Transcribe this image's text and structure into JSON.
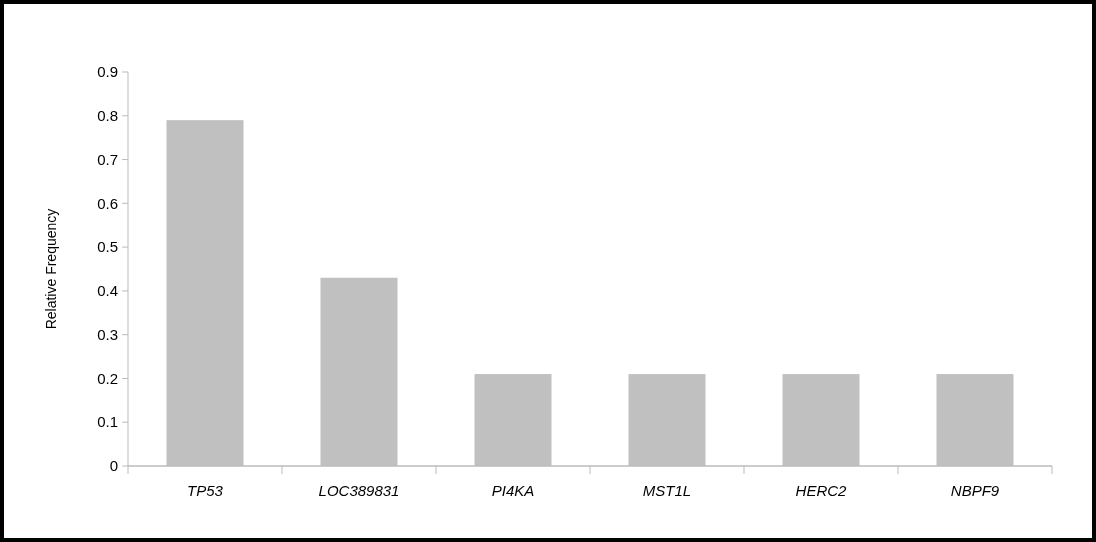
{
  "chart_data": {
    "type": "bar",
    "ylabel": "Relative Frequency",
    "categories": [
      "TP53",
      "LOC389831",
      "PI4KA",
      "MST1L",
      "HERC2",
      "NBPF9"
    ],
    "values": [
      0.79,
      0.43,
      0.21,
      0.21,
      0.21,
      0.21
    ],
    "color": "#c0c0c0",
    "ylim": [
      0,
      0.9
    ],
    "yticks": [
      0,
      0.1,
      0.2,
      0.3,
      0.4,
      0.5,
      0.6,
      0.7,
      0.8,
      0.9
    ],
    "grid": false
  }
}
